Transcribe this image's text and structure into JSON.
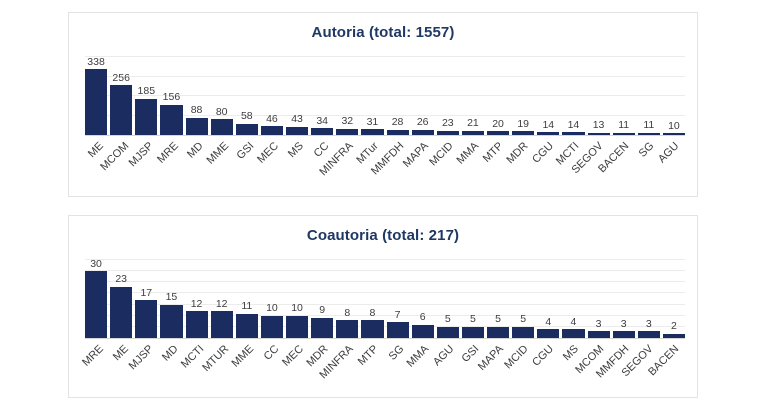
{
  "colors": {
    "bar": "#1b2d60",
    "title": "#1f3864",
    "value_label": "#3d3d3d",
    "category_label": "#3d3d3d",
    "gridline": "#ececec",
    "axis_line": "#d6d6d6",
    "panel_border": "#e3e3e3",
    "background": "#ffffff"
  },
  "chart_data": [
    {
      "type": "bar",
      "title": "Autoria (total: 1557)",
      "total": 1557,
      "categories": [
        "ME",
        "MCOM",
        "MJSP",
        "MRE",
        "MD",
        "MME",
        "GSI",
        "MEC",
        "MS",
        "CC",
        "MINFRA",
        "MTur",
        "MMFDH",
        "MAPA",
        "MCID",
        "MMA",
        "MTP",
        "MDR",
        "CGU",
        "MCTI",
        "SEGOV",
        "BACEN",
        "SG",
        "AGU"
      ],
      "values": [
        338,
        256,
        185,
        156,
        88,
        80,
        58,
        46,
        43,
        34,
        32,
        31,
        28,
        26,
        23,
        21,
        20,
        19,
        14,
        14,
        13,
        11,
        11,
        10
      ],
      "xlabel": "",
      "ylabel": "",
      "ylim": [
        0,
        400
      ],
      "grid_step": 100,
      "grid": true,
      "legend": false,
      "data_labels": true
    },
    {
      "type": "bar",
      "title": "Coautoria (total: 217)",
      "total": 217,
      "categories": [
        "MRE",
        "ME",
        "MJSP",
        "MD",
        "MCTI",
        "MTUR",
        "MME",
        "CC",
        "MEC",
        "MDR",
        "MINFRA",
        "MTP",
        "SG",
        "MMA",
        "AGU",
        "GSI",
        "MAPA",
        "MCID",
        "CGU",
        "MS",
        "MCOM",
        "MMFDH",
        "SEGOV",
        "BACEN"
      ],
      "values": [
        30,
        23,
        17,
        15,
        12,
        12,
        11,
        10,
        10,
        9,
        8,
        8,
        7,
        6,
        5,
        5,
        5,
        5,
        4,
        4,
        3,
        3,
        3,
        2
      ],
      "xlabel": "",
      "ylabel": "",
      "ylim": [
        0,
        35
      ],
      "grid_step": 5,
      "grid": true,
      "legend": false,
      "data_labels": true
    }
  ]
}
